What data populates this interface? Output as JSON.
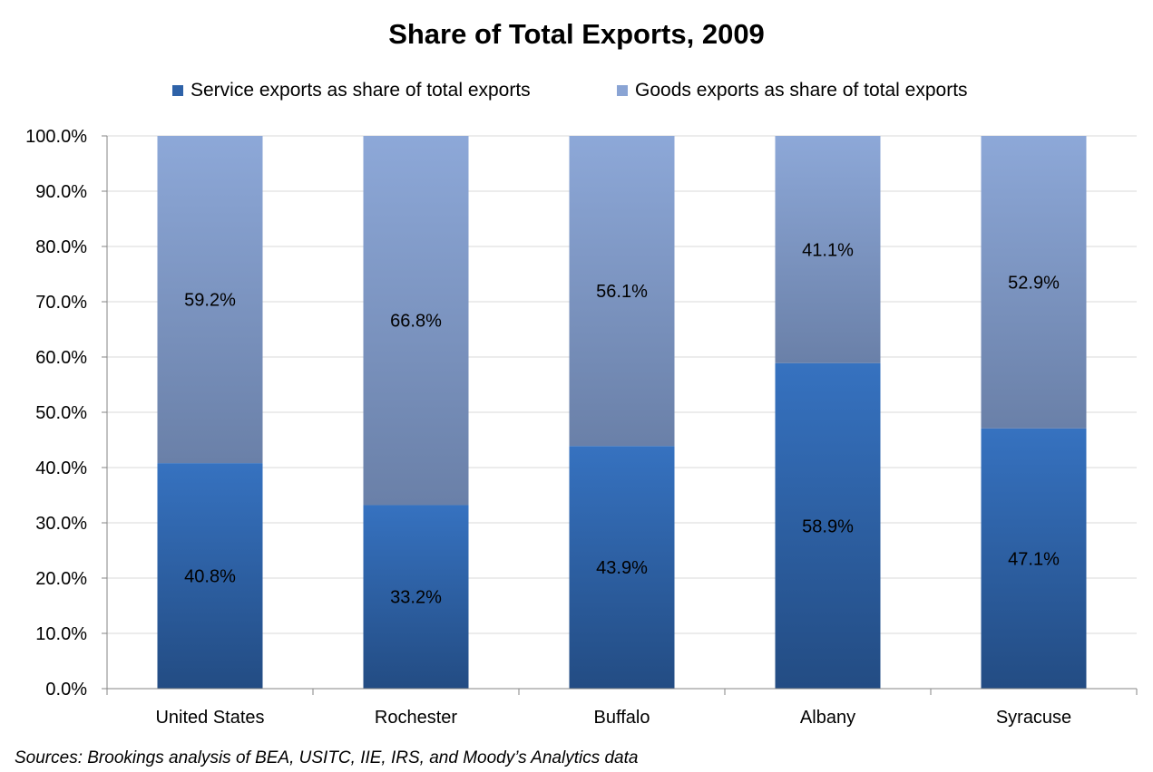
{
  "chart_data": {
    "type": "bar",
    "stacked": true,
    "title": "Share of Total Exports, 2009",
    "categories": [
      "United States",
      "Rochester",
      "Buffalo",
      "Albany",
      "Syracuse"
    ],
    "series": [
      {
        "name": "Service exports as share of total exports",
        "values": [
          40.8,
          33.2,
          43.9,
          58.9,
          47.1
        ],
        "labels": [
          "40.8%",
          "33.2%",
          "43.9%",
          "58.9%",
          "47.1%"
        ],
        "color": "#2E62A8"
      },
      {
        "name": "Goods exports as share of total exports",
        "values": [
          59.2,
          66.8,
          56.1,
          41.1,
          52.9
        ],
        "labels": [
          "59.2%",
          "66.8%",
          "56.1%",
          "41.1%",
          "52.9%"
        ],
        "color": "#8AA4D4"
      }
    ],
    "y_ticks": [
      "0.0%",
      "10.0%",
      "20.0%",
      "30.0%",
      "40.0%",
      "50.0%",
      "60.0%",
      "70.0%",
      "80.0%",
      "90.0%",
      "100.0%"
    ],
    "ylim": [
      0,
      100
    ],
    "xlabel": "",
    "ylabel": "",
    "grid": true,
    "legend_position": "top"
  },
  "source_note": "Sources: Brookings analysis of BEA, USITC, IIE, IRS, and Moody’s Analytics data"
}
